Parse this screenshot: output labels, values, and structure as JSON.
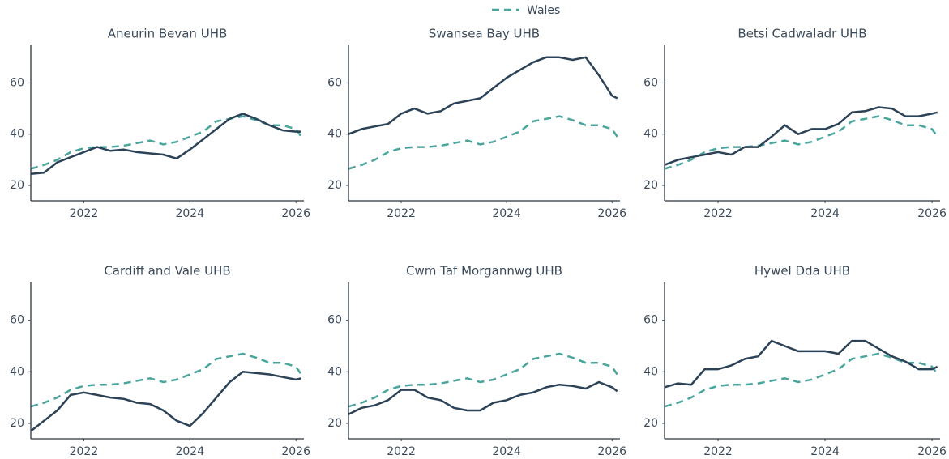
{
  "chart_data": [
    {
      "type": "line",
      "title": "Aneurin Bevan UHB",
      "x": [
        2021,
        2021.25,
        2021.5,
        2021.75,
        2022,
        2022.25,
        2022.5,
        2022.75,
        2023,
        2023.25,
        2023.5,
        2023.75,
        2024,
        2024.25,
        2024.5,
        2024.75,
        2025,
        2025.25,
        2025.5,
        2025.75,
        2026,
        2026.1
      ],
      "series": [
        {
          "color": "#2b4257",
          "values": [
            24.5,
            25,
            29,
            31,
            33,
            35,
            33.5,
            34,
            33,
            32.5,
            32,
            30.5,
            34,
            38,
            42,
            46,
            48,
            46,
            43.5,
            41.5,
            41,
            41
          ]
        },
        {
          "name": "Wales",
          "color": "#4aa59c",
          "dash": true,
          "values": [
            26.5,
            28,
            30,
            33,
            34.5,
            35,
            35,
            35.5,
            36.5,
            37.5,
            36,
            37,
            39,
            41,
            45,
            46,
            47,
            45.5,
            43.5,
            43.5,
            42,
            39
          ]
        }
      ],
      "xlim": [
        2021,
        2026.15
      ],
      "ylim": [
        14,
        75
      ],
      "xticks": [
        2022,
        2024,
        2026
      ],
      "yticks": [
        20,
        40,
        60
      ]
    },
    {
      "type": "line",
      "title": "Swansea Bay UHB",
      "x": [
        2021,
        2021.25,
        2021.5,
        2021.75,
        2022,
        2022.25,
        2022.5,
        2022.75,
        2023,
        2023.25,
        2023.5,
        2023.75,
        2024,
        2024.25,
        2024.5,
        2024.75,
        2025,
        2025.25,
        2025.5,
        2025.75,
        2026,
        2026.1
      ],
      "series": [
        {
          "color": "#2b4257",
          "values": [
            40,
            42,
            43,
            44,
            48,
            50,
            48,
            49,
            52,
            53,
            54,
            58,
            62,
            65,
            68,
            70,
            70,
            69,
            70,
            63,
            55,
            54
          ]
        },
        {
          "name": "Wales",
          "color": "#4aa59c",
          "dash": true,
          "values": [
            26.5,
            28,
            30,
            33,
            34.5,
            35,
            35,
            35.5,
            36.5,
            37.5,
            36,
            37,
            39,
            41,
            45,
            46,
            47,
            45.5,
            43.5,
            43.5,
            42,
            39
          ]
        }
      ],
      "xlim": [
        2021,
        2026.15
      ],
      "ylim": [
        14,
        75
      ],
      "xticks": [
        2022,
        2024,
        2026
      ],
      "yticks": [
        20,
        40,
        60
      ]
    },
    {
      "type": "line",
      "title": "Betsi Cadwaladr UHB",
      "x": [
        2021,
        2021.25,
        2021.5,
        2021.75,
        2022,
        2022.25,
        2022.5,
        2022.75,
        2023,
        2023.25,
        2023.5,
        2023.75,
        2024,
        2024.25,
        2024.5,
        2024.75,
        2025,
        2025.25,
        2025.5,
        2025.75,
        2026,
        2026.1
      ],
      "series": [
        {
          "color": "#2b4257",
          "values": [
            28,
            30,
            31,
            32,
            33,
            32,
            35,
            35,
            39,
            43.5,
            40,
            42,
            42,
            44,
            48.5,
            49,
            50.5,
            50,
            47,
            47,
            48,
            48.5
          ]
        },
        {
          "name": "Wales",
          "color": "#4aa59c",
          "dash": true,
          "values": [
            26.5,
            28,
            30,
            33,
            34.5,
            35,
            35,
            35.5,
            36.5,
            37.5,
            36,
            37,
            39,
            41,
            45,
            46,
            47,
            45.5,
            43.5,
            43.5,
            42,
            39
          ]
        }
      ],
      "xlim": [
        2021,
        2026.15
      ],
      "ylim": [
        14,
        75
      ],
      "xticks": [
        2022,
        2024,
        2026
      ],
      "yticks": [
        20,
        40,
        60
      ]
    },
    {
      "type": "line",
      "title": "Cardiff and Vale UHB",
      "x": [
        2021,
        2021.25,
        2021.5,
        2021.75,
        2022,
        2022.25,
        2022.5,
        2022.75,
        2023,
        2023.25,
        2023.5,
        2023.75,
        2024,
        2024.25,
        2024.5,
        2024.75,
        2025,
        2025.25,
        2025.5,
        2025.75,
        2026,
        2026.1
      ],
      "series": [
        {
          "color": "#2b4257",
          "values": [
            17,
            21,
            25,
            31,
            32,
            31,
            30,
            29.5,
            28,
            27.5,
            25,
            21,
            19,
            24,
            30,
            36,
            40,
            39.5,
            39,
            38,
            37,
            37.5
          ]
        },
        {
          "name": "Wales",
          "color": "#4aa59c",
          "dash": true,
          "values": [
            26.5,
            28,
            30,
            33,
            34.5,
            35,
            35,
            35.5,
            36.5,
            37.5,
            36,
            37,
            39,
            41,
            45,
            46,
            47,
            45.5,
            43.5,
            43.5,
            42,
            39
          ]
        }
      ],
      "xlim": [
        2021,
        2026.15
      ],
      "ylim": [
        14,
        75
      ],
      "xticks": [
        2022,
        2024,
        2026
      ],
      "yticks": [
        20,
        40,
        60
      ]
    },
    {
      "type": "line",
      "title": "Cwm Taf Morgannwg UHB",
      "x": [
        2021,
        2021.25,
        2021.5,
        2021.75,
        2022,
        2022.25,
        2022.5,
        2022.75,
        2023,
        2023.25,
        2023.5,
        2023.75,
        2024,
        2024.25,
        2024.5,
        2024.75,
        2025,
        2025.25,
        2025.5,
        2025.75,
        2026,
        2026.1
      ],
      "series": [
        {
          "color": "#2b4257",
          "values": [
            23.5,
            26,
            27,
            29,
            33,
            33,
            30,
            29,
            26,
            25,
            25,
            28,
            29,
            31,
            32,
            34,
            35,
            34.5,
            33.5,
            36,
            34,
            32.5
          ]
        },
        {
          "name": "Wales",
          "color": "#4aa59c",
          "dash": true,
          "values": [
            26.5,
            28,
            30,
            33,
            34.5,
            35,
            35,
            35.5,
            36.5,
            37.5,
            36,
            37,
            39,
            41,
            45,
            46,
            47,
            45.5,
            43.5,
            43.5,
            42,
            39
          ]
        }
      ],
      "xlim": [
        2021,
        2026.15
      ],
      "ylim": [
        14,
        75
      ],
      "xticks": [
        2022,
        2024,
        2026
      ],
      "yticks": [
        20,
        40,
        60
      ]
    },
    {
      "type": "line",
      "title": "Hywel Dda UHB",
      "x": [
        2021,
        2021.25,
        2021.5,
        2021.75,
        2022,
        2022.25,
        2022.5,
        2022.75,
        2023,
        2023.25,
        2023.5,
        2023.75,
        2024,
        2024.25,
        2024.5,
        2024.75,
        2025,
        2025.25,
        2025.5,
        2025.75,
        2026,
        2026.1
      ],
      "series": [
        {
          "color": "#2b4257",
          "values": [
            34,
            35.5,
            35,
            41,
            41,
            42.5,
            45,
            46,
            52,
            50,
            48,
            48,
            48,
            47,
            52,
            52,
            49,
            46,
            44,
            41,
            41,
            42
          ]
        },
        {
          "name": "Wales",
          "color": "#4aa59c",
          "dash": true,
          "values": [
            26.5,
            28,
            30,
            33,
            34.5,
            35,
            35,
            35.5,
            36.5,
            37.5,
            36,
            37,
            39,
            41,
            45,
            46,
            47,
            45.5,
            43.5,
            43.5,
            42,
            39
          ]
        }
      ],
      "xlim": [
        2021,
        2026.15
      ],
      "ylim": [
        14,
        75
      ],
      "xticks": [
        2022,
        2024,
        2026
      ],
      "yticks": [
        20,
        40,
        60
      ]
    }
  ]
}
